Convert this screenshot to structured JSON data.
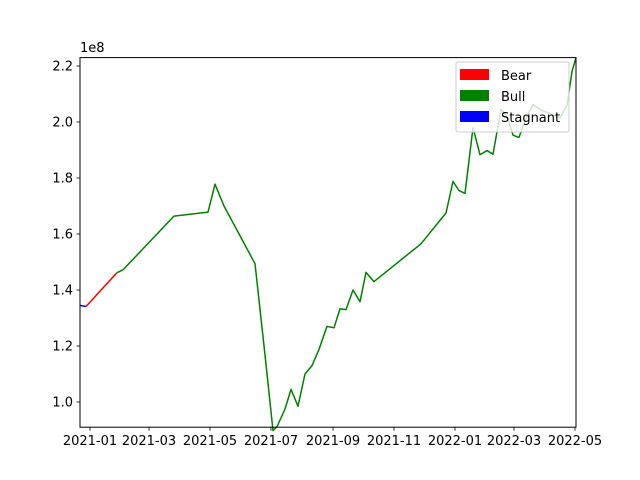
{
  "chart_data": {
    "type": "line",
    "title": "",
    "xlabel": "",
    "ylabel": "",
    "y_offset_label": "1e8",
    "xlim": [
      "2020-12-22",
      "2022-05-02"
    ],
    "ylim": [
      0.91,
      2.23
    ],
    "x_ticks": [
      "2021-01",
      "2021-03",
      "2021-05",
      "2021-07",
      "2021-09",
      "2021-11",
      "2022-01",
      "2022-03",
      "2022-05"
    ],
    "y_ticks": [
      "1.0",
      "1.2",
      "1.4",
      "1.6",
      "1.8",
      "2.0",
      "2.2"
    ],
    "grid": false,
    "legend_position": "top-right",
    "legend": [
      {
        "label": "Bear",
        "color": "#ff0000"
      },
      {
        "label": "Bull",
        "color": "#008000"
      },
      {
        "label": "Stagnant",
        "color": "#0000ff"
      }
    ],
    "series": [
      {
        "name": "Stagnant",
        "color": "#0000ff",
        "points": [
          [
            "2020-12-22",
            1.345
          ],
          [
            "2020-12-28",
            1.341
          ]
        ]
      },
      {
        "name": "Bear",
        "color": "#ff0000",
        "points": [
          [
            "2020-12-28",
            1.341
          ],
          [
            "2021-01-28",
            1.462
          ]
        ]
      },
      {
        "name": "Bull",
        "color": "#008000",
        "points": [
          [
            "2021-01-28",
            1.462
          ],
          [
            "2021-02-03",
            1.472
          ],
          [
            "2021-03-26",
            1.664
          ],
          [
            "2021-04-29",
            1.678
          ],
          [
            "2021-05-06",
            1.778
          ],
          [
            "2021-05-15",
            1.7
          ],
          [
            "2021-06-15",
            1.494
          ],
          [
            "2021-06-25",
            1.168
          ],
          [
            "2021-07-03",
            0.898
          ],
          [
            "2021-07-07",
            0.912
          ],
          [
            "2021-07-15",
            0.975
          ],
          [
            "2021-07-21",
            1.045
          ],
          [
            "2021-07-28",
            0.985
          ],
          [
            "2021-08-04",
            1.1
          ],
          [
            "2021-08-11",
            1.13
          ],
          [
            "2021-08-18",
            1.188
          ],
          [
            "2021-08-26",
            1.27
          ],
          [
            "2021-09-02",
            1.265
          ],
          [
            "2021-09-08",
            1.333
          ],
          [
            "2021-09-14",
            1.33
          ],
          [
            "2021-09-21",
            1.4
          ],
          [
            "2021-09-28",
            1.358
          ],
          [
            "2021-10-04",
            1.463
          ],
          [
            "2021-10-12",
            1.43
          ],
          [
            "2021-11-28",
            1.565
          ],
          [
            "2021-12-23",
            1.675
          ],
          [
            "2021-12-30",
            1.788
          ],
          [
            "2022-01-05",
            1.755
          ],
          [
            "2022-01-11",
            1.745
          ],
          [
            "2022-01-19",
            1.98
          ],
          [
            "2022-01-26",
            1.883
          ],
          [
            "2022-02-02",
            1.898
          ],
          [
            "2022-02-08",
            1.885
          ],
          [
            "2022-02-16",
            2.045
          ],
          [
            "2022-02-22",
            2.02
          ],
          [
            "2022-02-28",
            1.953
          ],
          [
            "2022-03-06",
            1.945
          ],
          [
            "2022-03-12",
            2.005
          ],
          [
            "2022-03-20",
            2.063
          ],
          [
            "2022-03-27",
            2.045
          ],
          [
            "2022-04-16",
            2.015
          ],
          [
            "2022-04-23",
            2.06
          ],
          [
            "2022-04-28",
            2.18
          ],
          [
            "2022-05-02",
            2.23
          ]
        ]
      }
    ]
  }
}
